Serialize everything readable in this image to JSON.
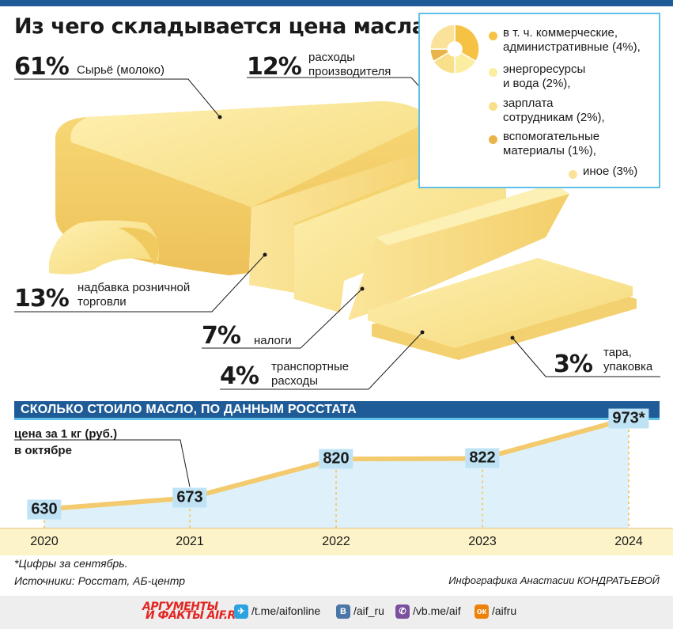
{
  "title": "Из чего складывается цена масла",
  "breakdown": [
    {
      "pct": "61%",
      "label": "Сырьё (молоко)"
    },
    {
      "pct": "12%",
      "label": "расходы производителя"
    },
    {
      "pct": "13%",
      "label": "надбавка розничной торговли"
    },
    {
      "pct": "7%",
      "label": "налоги"
    },
    {
      "pct": "4%",
      "label": "транспортные расходы"
    },
    {
      "pct": "3%",
      "label": "тара, упаковка"
    }
  ],
  "breakdown_lines": {
    "milk": "Сырьё (молоко)",
    "prod_1": "расходы",
    "prod_2": "производителя",
    "retail_1": "надбавка розничной",
    "retail_2": "торговли",
    "tax": "налоги",
    "transport_1": "транспортные",
    "transport_2": "расходы",
    "pack_1": "тара,",
    "pack_2": "упаковка"
  },
  "producer_legend": [
    {
      "line1": "в т. ч. коммерческие,",
      "line2": "административные (4%),",
      "value": 4,
      "color": "#f6c244"
    },
    {
      "line1": "энергоресурсы",
      "line2": "и вода (2%),",
      "value": 2,
      "color": "#fbeea0"
    },
    {
      "line1": "зарплата",
      "line2": "сотрудникам (2%),",
      "value": 2,
      "color": "#f8df8a"
    },
    {
      "line1": "вспомогательные",
      "line2": "материалы (1%),",
      "value": 1,
      "color": "#e9b54a"
    },
    {
      "line1": "иное (3%)",
      "line2": "",
      "value": 3,
      "color": "#fbe29a"
    }
  ],
  "section_title": "СКОЛЬКО СТОИЛО МАСЛО, ПО ДАННЫМ РОССТАТА",
  "unit_line1": "цена за 1 кг (руб.)",
  "unit_line2": "в октябре",
  "chart_data": {
    "type": "line",
    "x": [
      "2020",
      "2021",
      "2022",
      "2023",
      "2024"
    ],
    "series": [
      {
        "values": [
          630,
          673,
          820,
          822,
          973
        ]
      }
    ],
    "value_labels": [
      "630",
      "673",
      "820",
      "822",
      "973*"
    ],
    "ylabel": "цена за 1 кг (руб.) в октябре",
    "ylim": [
      560,
      1000
    ],
    "colors": {
      "line": "#f3ca6e",
      "area": "#d6eefa"
    }
  },
  "footnote": "*Цифры за сентябрь.",
  "sources": "Источники: Росстат, АБ-центр",
  "credit": "Инфографика Анастасии КОНДРАТЬЕВОЙ",
  "footer": {
    "logo_line1": "АРГУМЕНТЫ",
    "logo_line2": "И ФАКТЫ AIF.RU",
    "links": [
      {
        "icon": "telegram-icon",
        "text": "/t.me/aifonline",
        "color": "#2aa3df",
        "glyph": "✈"
      },
      {
        "icon": "vk-icon",
        "text": "/aif_ru",
        "color": "#4a76a8",
        "glyph": "В"
      },
      {
        "icon": "viber-icon",
        "text": "/vb.me/aif",
        "color": "#7b519d",
        "glyph": "✆"
      },
      {
        "icon": "ok-icon",
        "text": "/aifru",
        "color": "#ee8208",
        "glyph": "ок"
      }
    ]
  }
}
